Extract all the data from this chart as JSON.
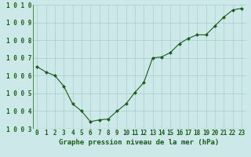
{
  "x": [
    0,
    1,
    2,
    3,
    4,
    5,
    6,
    7,
    8,
    9,
    10,
    11,
    12,
    13,
    14,
    15,
    16,
    17,
    18,
    19,
    20,
    21,
    22,
    23
  ],
  "y": [
    1006.5,
    1006.2,
    1006.0,
    1005.4,
    1004.4,
    1004.0,
    1003.4,
    1003.5,
    1003.55,
    1004.0,
    1004.4,
    1005.05,
    1005.6,
    1007.0,
    1007.05,
    1007.3,
    1007.8,
    1008.1,
    1008.3,
    1008.3,
    1008.8,
    1009.3,
    1009.7,
    1009.8
  ],
  "line_color": "#1a5c1a",
  "marker_color": "#1a5c1a",
  "bg_color": "#cce8e8",
  "grid_color": "#a8cccc",
  "xlabel": "Graphe pression niveau de la mer (hPa)",
  "ylim": [
    1003.0,
    1010.0
  ],
  "xlim": [
    -0.5,
    23.5
  ],
  "yticks": [
    1003,
    1004,
    1005,
    1006,
    1007,
    1008,
    1009,
    1010
  ],
  "xticks": [
    0,
    1,
    2,
    3,
    4,
    5,
    6,
    7,
    8,
    9,
    10,
    11,
    12,
    13,
    14,
    15,
    16,
    17,
    18,
    19,
    20,
    21,
    22,
    23
  ],
  "tick_fontsize": 5.5,
  "label_fontsize": 6.5
}
